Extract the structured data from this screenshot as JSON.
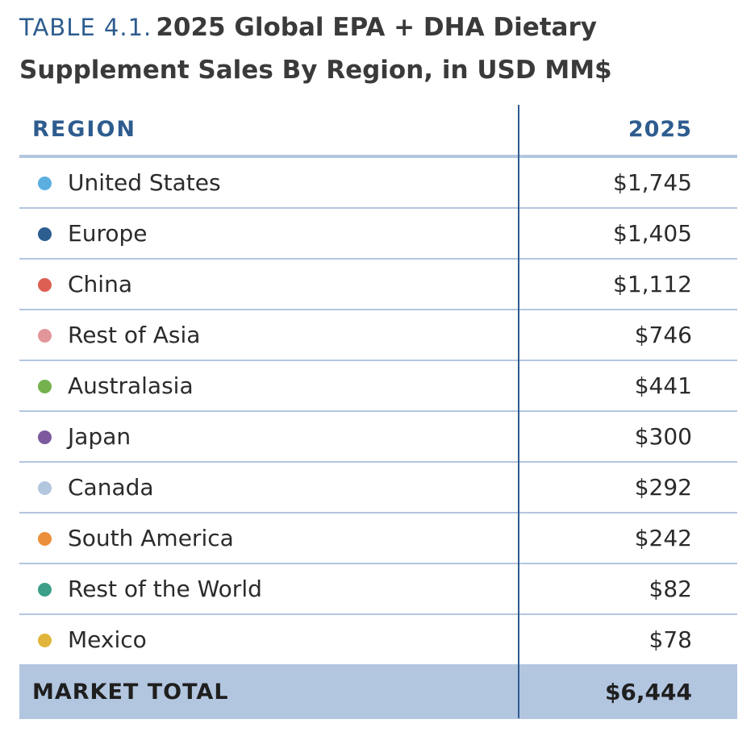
{
  "title": {
    "label": "TABLE 4.1.",
    "line1": "2025 Global EPA + DHA Dietary",
    "line2": "Supplement Sales By Region, in USD MM$"
  },
  "table": {
    "headers": {
      "region": "REGION",
      "year": "2025"
    },
    "rows": [
      {
        "region": "United States",
        "value": "$1,745",
        "color": "#5aafe0"
      },
      {
        "region": "Europe",
        "value": "$1,405",
        "color": "#2c5e8f"
      },
      {
        "region": "China",
        "value": "$1,112",
        "color": "#dc5f52"
      },
      {
        "region": "Rest of Asia",
        "value": "$746",
        "color": "#e29699"
      },
      {
        "region": "Australasia",
        "value": "$441",
        "color": "#74b24e"
      },
      {
        "region": "Japan",
        "value": "$300",
        "color": "#7d5a9e"
      },
      {
        "region": "Canada",
        "value": "$292",
        "color": "#b3c6e0"
      },
      {
        "region": "South America",
        "value": "$242",
        "color": "#ec8f3a"
      },
      {
        "region": "Rest of the World",
        "value": "$82",
        "color": "#3c9f87"
      },
      {
        "region": "Mexico",
        "value": "$78",
        "color": "#e0b53a"
      }
    ],
    "total": {
      "label": "MARKET TOTAL",
      "value": "$6,444"
    }
  }
}
